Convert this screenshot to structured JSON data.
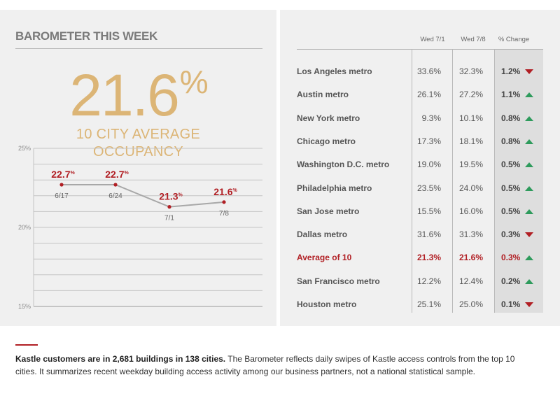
{
  "left": {
    "heading": "BAROMETER THIS WEEK",
    "big_number": "21.6",
    "big_unit": "%",
    "caption_line1": "10 CITY AVERAGE",
    "caption_line2": "OCCUPANCY"
  },
  "chart_data": {
    "type": "line",
    "x": [
      "6/17",
      "6/24",
      "7/1",
      "7/8"
    ],
    "values": [
      22.7,
      22.7,
      21.3,
      21.6
    ],
    "value_labels": [
      "22.7",
      "22.7",
      "21.3",
      "21.6"
    ],
    "value_unit": "%",
    "ylim": [
      15,
      25
    ],
    "yticks": [
      "25%",
      "20%",
      "15%"
    ],
    "grid": true,
    "colors": {
      "line": "#a8a8a8",
      "point": "#b11f24",
      "value": "#b11f24"
    }
  },
  "table": {
    "headers": [
      "Wed 7/1",
      "Wed 7/8",
      "% Change"
    ],
    "rows": [
      {
        "city": "Los Angeles metro",
        "wed71": "33.6%",
        "wed78": "32.3%",
        "change": "1.2%",
        "dir": "down"
      },
      {
        "city": "Austin metro",
        "wed71": "26.1%",
        "wed78": "27.2%",
        "change": "1.1%",
        "dir": "up"
      },
      {
        "city": "New York metro",
        "wed71": "9.3%",
        "wed78": "10.1%",
        "change": "0.8%",
        "dir": "up"
      },
      {
        "city": "Chicago metro",
        "wed71": "17.3%",
        "wed78": "18.1%",
        "change": "0.8%",
        "dir": "up"
      },
      {
        "city": "Washington D.C. metro",
        "wed71": "19.0%",
        "wed78": "19.5%",
        "change": "0.5%",
        "dir": "up"
      },
      {
        "city": "Philadelphia metro",
        "wed71": "23.5%",
        "wed78": "24.0%",
        "change": "0.5%",
        "dir": "up"
      },
      {
        "city": "San Jose metro",
        "wed71": "15.5%",
        "wed78": "16.0%",
        "change": "0.5%",
        "dir": "up"
      },
      {
        "city": "Dallas metro",
        "wed71": "31.6%",
        "wed78": "31.3%",
        "change": "0.3%",
        "dir": "down"
      },
      {
        "city": "Average of 10",
        "wed71": "21.3%",
        "wed78": "21.6%",
        "change": "0.3%",
        "dir": "up",
        "highlight": true
      },
      {
        "city": "San Francisco metro",
        "wed71": "12.2%",
        "wed78": "12.4%",
        "change": "0.2%",
        "dir": "up"
      },
      {
        "city": "Houston metro",
        "wed71": "25.1%",
        "wed78": "25.0%",
        "change": "0.1%",
        "dir": "down"
      }
    ]
  },
  "footer": {
    "bold": "Kastle customers are in 2,681 buildings in 138 cities.",
    "text": " The Barometer reflects daily swipes of Kastle access controls from the top 10 cities. It summarizes recent weekday building access activity among our business partners, not a national statistical sample."
  },
  "colors": {
    "accent": "#b11f24",
    "gold": "#dcb576",
    "up": "#2e9b5c",
    "down": "#b11f24",
    "panel": "#f0f0f0"
  }
}
